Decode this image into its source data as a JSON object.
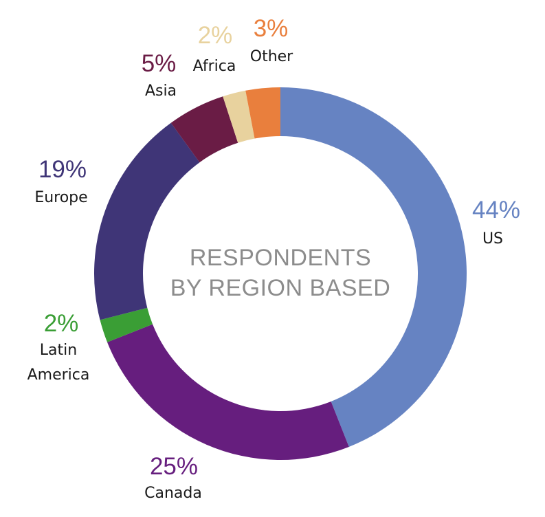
{
  "chart_data": {
    "type": "pie",
    "title": "RESPONDENTS BY REGION BASED",
    "title_lines": [
      "RESPONDENTS",
      "BY REGION BASED"
    ],
    "donut": true,
    "start": "top",
    "direction": "clockwise",
    "slices": [
      {
        "label": "US",
        "label_lines": [
          "US"
        ],
        "value": 44,
        "pct_label": "44%",
        "color": "#6683c2"
      },
      {
        "label": "Canada",
        "label_lines": [
          "Canada"
        ],
        "value": 25,
        "pct_label": "25%",
        "color": "#661e7e"
      },
      {
        "label": "Latin America",
        "label_lines": [
          "Latin",
          "America"
        ],
        "value": 2,
        "pct_label": "2%",
        "color": "#3a9e35"
      },
      {
        "label": "Europe",
        "label_lines": [
          "Europe"
        ],
        "value": 19,
        "pct_label": "19%",
        "color": "#3f3577"
      },
      {
        "label": "Asia",
        "label_lines": [
          "Asia"
        ],
        "value": 5,
        "pct_label": "5%",
        "color": "#6a1c45"
      },
      {
        "label": "Africa",
        "label_lines": [
          "Africa"
        ],
        "value": 2,
        "pct_label": "2%",
        "color": "#e8d29e"
      },
      {
        "label": "Other",
        "label_lines": [
          "Other"
        ],
        "value": 3,
        "pct_label": "3%",
        "color": "#e97f3d"
      }
    ]
  }
}
